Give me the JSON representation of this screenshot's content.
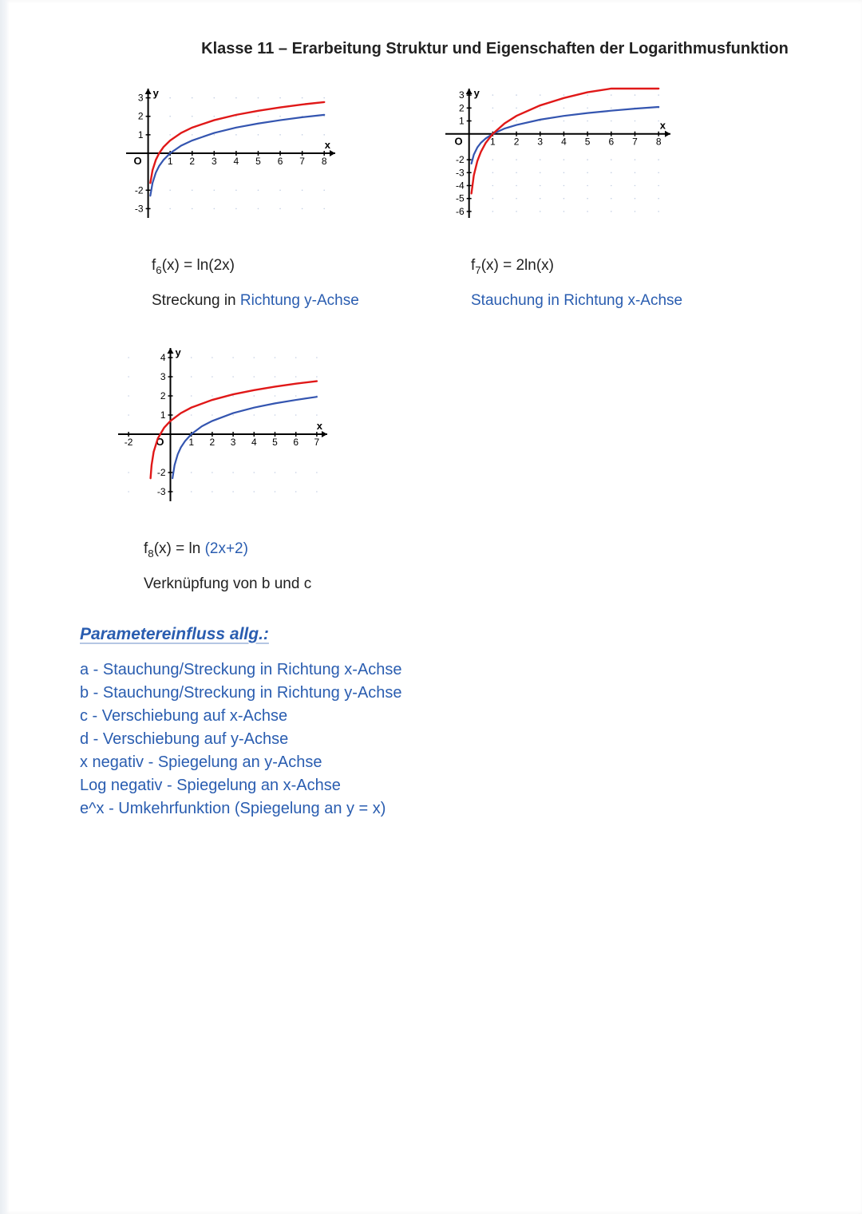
{
  "title": "Klasse 11 – Erarbeitung Struktur und Eigenschaften der Logarithmusfunktion",
  "charts": {
    "c1": {
      "type": "line",
      "xlim": [
        -1,
        8.5
      ],
      "ylim": [
        -3.5,
        3.5
      ],
      "xticks": [
        1,
        2,
        3,
        4,
        5,
        6,
        7,
        8
      ],
      "yticks_pos": [
        1,
        2,
        3
      ],
      "yticks_neg": [
        -2,
        -3
      ],
      "axis_label_x": "x",
      "axis_label_y": "y",
      "series": [
        {
          "name": "ln(x)",
          "color": "#3455b0",
          "width": 2.2,
          "x": [
            0.1,
            0.2,
            0.35,
            0.5,
            0.7,
            1,
            1.5,
            2,
            3,
            4,
            5,
            6,
            7,
            8
          ],
          "y": [
            -2.3,
            -1.61,
            -1.05,
            -0.69,
            -0.36,
            0,
            0.41,
            0.69,
            1.1,
            1.39,
            1.61,
            1.79,
            1.95,
            2.08
          ]
        },
        {
          "name": "ln(2x)",
          "color": "#e01818",
          "width": 2.4,
          "x": [
            0.1,
            0.2,
            0.35,
            0.5,
            0.7,
            1,
            1.5,
            2,
            3,
            4,
            5,
            6,
            7,
            8
          ],
          "y": [
            -1.61,
            -0.92,
            -0.36,
            0,
            0.34,
            0.69,
            1.1,
            1.39,
            1.79,
            2.08,
            2.3,
            2.48,
            2.64,
            2.77
          ]
        }
      ],
      "grid_dots_color": "#8aa0c8",
      "axis_color": "#000000",
      "tick_fontsize": 12,
      "formula_html": "f<sub>6</sub>(x) = ln(2x)",
      "caption_prefix": "Streckung in ",
      "caption_blue": "Richtung y-Achse"
    },
    "c2": {
      "type": "line",
      "xlim": [
        -1,
        8.5
      ],
      "ylim": [
        -6.5,
        3.5
      ],
      "xticks": [
        1,
        2,
        3,
        4,
        5,
        6,
        7,
        8
      ],
      "yticks_pos": [
        1,
        2,
        3
      ],
      "yticks_neg": [
        -2,
        -3,
        -4,
        -5,
        -6
      ],
      "axis_label_x": "x",
      "axis_label_y": "y",
      "series": [
        {
          "name": "ln(x)",
          "color": "#3455b0",
          "width": 2.2,
          "x": [
            0.1,
            0.2,
            0.35,
            0.5,
            0.7,
            1,
            1.5,
            2,
            3,
            4,
            5,
            6,
            7,
            8
          ],
          "y": [
            -2.3,
            -1.61,
            -1.05,
            -0.69,
            -0.36,
            0,
            0.41,
            0.69,
            1.1,
            1.39,
            1.61,
            1.79,
            1.95,
            2.08
          ]
        },
        {
          "name": "2ln(x)",
          "color": "#e01818",
          "width": 2.4,
          "x": [
            0.1,
            0.2,
            0.35,
            0.5,
            0.7,
            1,
            1.5,
            2,
            3,
            4,
            5,
            6,
            7,
            8
          ],
          "y": [
            -4.61,
            -3.22,
            -2.1,
            -1.39,
            -0.71,
            0,
            0.81,
            1.39,
            2.2,
            2.77,
            3.22,
            3.58,
            3.89,
            4.16
          ]
        }
      ],
      "grid_dots_color": "#8aa0c8",
      "axis_color": "#000000",
      "tick_fontsize": 12,
      "formula_html": "f<sub>7</sub>(x) = 2ln(x)",
      "caption_blue_full": "Stauchung in Richtung x-Achse"
    },
    "c3": {
      "type": "line",
      "xlim": [
        -2.5,
        7.5
      ],
      "ylim": [
        -3.5,
        4.5
      ],
      "xticks": [
        -2,
        1,
        2,
        3,
        4,
        5,
        6,
        7
      ],
      "yticks_pos": [
        1,
        2,
        3,
        4
      ],
      "yticks_neg": [
        -2,
        -3
      ],
      "axis_label_x": "x",
      "axis_label_y": "y",
      "series": [
        {
          "name": "ln(x)",
          "color": "#3455b0",
          "width": 2.2,
          "x": [
            0.1,
            0.2,
            0.35,
            0.5,
            0.7,
            1,
            1.5,
            2,
            3,
            4,
            5,
            6,
            7
          ],
          "y": [
            -2.3,
            -1.61,
            -1.05,
            -0.69,
            -0.36,
            0,
            0.41,
            0.69,
            1.1,
            1.39,
            1.61,
            1.79,
            1.95
          ]
        },
        {
          "name": "ln(2x+2)",
          "color": "#e01818",
          "width": 2.4,
          "x": [
            -0.95,
            -0.9,
            -0.8,
            -0.6,
            -0.3,
            0,
            0.5,
            1,
            2,
            3,
            4,
            5,
            6,
            7
          ],
          "y": [
            -2.3,
            -1.61,
            -0.92,
            -0.22,
            0.34,
            0.69,
            1.1,
            1.39,
            1.79,
            2.08,
            2.3,
            2.48,
            2.64,
            2.77
          ]
        }
      ],
      "grid_dots_color": "#8aa0c8",
      "axis_color": "#000000",
      "tick_fontsize": 12,
      "formula_html": "f<sub>8</sub>(x) = ln <span style=\"color:#2a5db0\">(2x+2)</span>",
      "caption_plain": "Verknüpfung von b und c"
    }
  },
  "params": {
    "heading": "Parametereinfluss allg.:",
    "lines": [
      "a - Stauchung/Streckung in Richtung x-Achse",
      "b - Stauchung/Streckung in Richtung y-Achse",
      "c - Verschiebung auf x-Achse",
      "d - Verschiebung auf y-Achse",
      "x negativ - Spiegelung an y-Achse",
      "Log negativ - Spiegelung an x-Achse",
      "e^x - Umkehrfunktion (Spiegelung an y = x)"
    ]
  },
  "svg_defaults": {
    "tick_len": 3
  }
}
